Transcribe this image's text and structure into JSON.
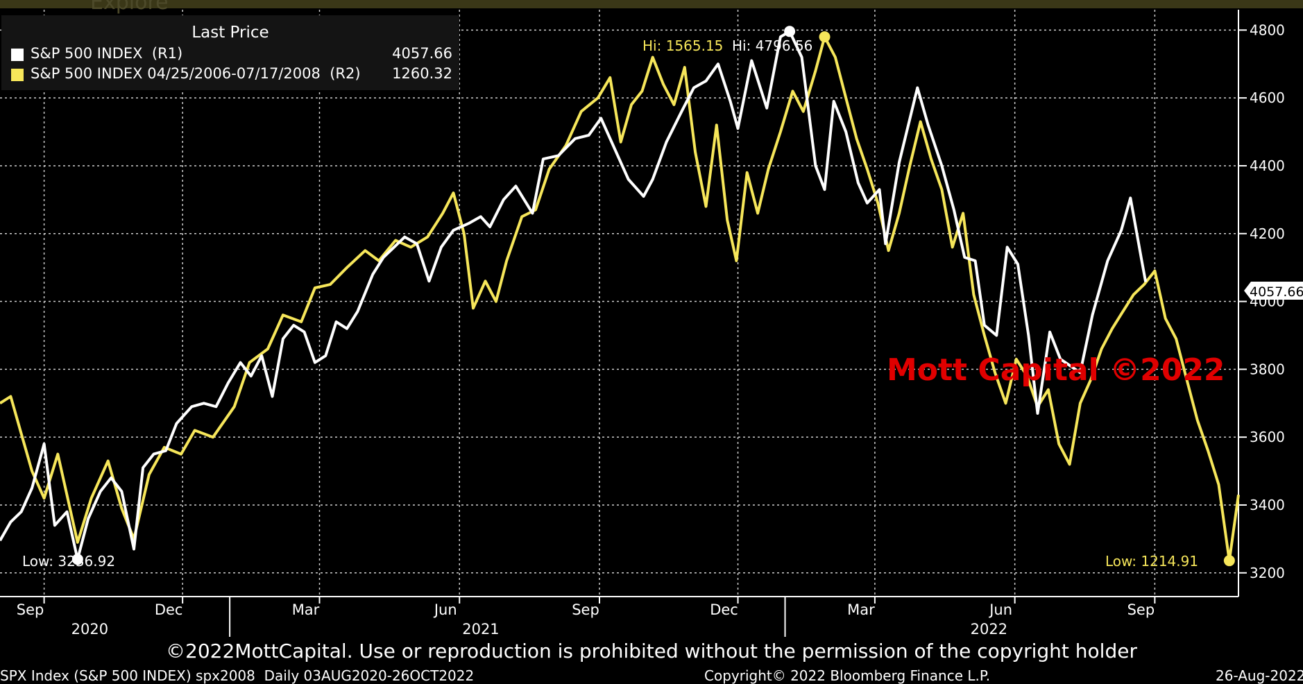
{
  "header": {
    "ghost_text": "Explore"
  },
  "legend": {
    "title": "Last Price",
    "rows": [
      {
        "label": "S&P 500 INDEX  (R1)",
        "value": "4057.66",
        "color": "#ffffff"
      },
      {
        "label": "S&P 500 INDEX 04/25/2006-07/17/2008  (R2)",
        "value": "1260.32",
        "color": "#f6e65a"
      }
    ]
  },
  "annotations": {
    "hi_yellow": "Hi: 1565.15",
    "hi_white": "Hi: 4796.56",
    "low_white": "Low: 3236.92",
    "low_yellow": "Low: 1214.91",
    "last_value_tag": "4057.66"
  },
  "watermark": "Mott Capital ©2022",
  "footer": {
    "copyright_notice": "©2022MottCapital. Use or reproduction is prohibited without the permission of the copyright holder",
    "ticker_info": "SPX Index (S&P 500 INDEX) spx2008  Daily 03AUG2020-26OCT2022",
    "bloomberg": "Copyright© 2022 Bloomberg Finance L.P.",
    "date": "26-Aug-2022"
  },
  "chart_data": {
    "type": "line",
    "x_start": "2020-08-03",
    "x_end": "2022-10-26",
    "yaxis_right": {
      "ticks": [
        3200,
        3400,
        3600,
        3800,
        4000,
        4200,
        4400,
        4600,
        4800
      ],
      "ylim": [
        3130,
        4860
      ]
    },
    "grid": true,
    "x_month_ticks": [
      {
        "label": "Sep",
        "date": "2020-09-01"
      },
      {
        "label": "Dec",
        "date": "2020-12-01"
      },
      {
        "label": "Mar",
        "date": "2021-03-01"
      },
      {
        "label": "Jun",
        "date": "2021-06-01"
      },
      {
        "label": "Sep",
        "date": "2021-09-01"
      },
      {
        "label": "Dec",
        "date": "2021-12-01"
      },
      {
        "label": "Mar",
        "date": "2022-03-01"
      },
      {
        "label": "Jun",
        "date": "2022-06-01"
      },
      {
        "label": "Sep",
        "date": "2022-09-01"
      }
    ],
    "x_year_labels": [
      {
        "label": "2020",
        "date": "2020-10-01"
      },
      {
        "label": "2021",
        "date": "2021-06-15"
      },
      {
        "label": "2022",
        "date": "2022-05-15"
      }
    ],
    "year_dividers": [
      "2021-01-01",
      "2022-01-01"
    ],
    "series": [
      {
        "name": "S&P 500 INDEX",
        "color": "#ffffff",
        "points": [
          [
            "2020-08-03",
            3295
          ],
          [
            "2020-08-10",
            3350
          ],
          [
            "2020-08-17",
            3380
          ],
          [
            "2020-08-24",
            3450
          ],
          [
            "2020-09-01",
            3580
          ],
          [
            "2020-09-08",
            3340
          ],
          [
            "2020-09-16",
            3380
          ],
          [
            "2020-09-23",
            3240
          ],
          [
            "2020-09-30",
            3360
          ],
          [
            "2020-10-08",
            3440
          ],
          [
            "2020-10-15",
            3480
          ],
          [
            "2020-10-22",
            3440
          ],
          [
            "2020-10-30",
            3270
          ],
          [
            "2020-11-05",
            3510
          ],
          [
            "2020-11-12",
            3550
          ],
          [
            "2020-11-20",
            3560
          ],
          [
            "2020-11-27",
            3640
          ],
          [
            "2020-12-07",
            3690
          ],
          [
            "2020-12-15",
            3700
          ],
          [
            "2020-12-23",
            3690
          ],
          [
            "2020-12-31",
            3760
          ],
          [
            "2021-01-08",
            3820
          ],
          [
            "2021-01-15",
            3780
          ],
          [
            "2021-01-22",
            3840
          ],
          [
            "2021-01-29",
            3720
          ],
          [
            "2021-02-05",
            3890
          ],
          [
            "2021-02-12",
            3930
          ],
          [
            "2021-02-19",
            3910
          ],
          [
            "2021-02-26",
            3820
          ],
          [
            "2021-03-05",
            3840
          ],
          [
            "2021-03-12",
            3940
          ],
          [
            "2021-03-19",
            3920
          ],
          [
            "2021-03-26",
            3970
          ],
          [
            "2021-04-05",
            4080
          ],
          [
            "2021-04-12",
            4130
          ],
          [
            "2021-04-19",
            4160
          ],
          [
            "2021-04-26",
            4190
          ],
          [
            "2021-05-04",
            4170
          ],
          [
            "2021-05-12",
            4060
          ],
          [
            "2021-05-20",
            4160
          ],
          [
            "2021-05-28",
            4210
          ],
          [
            "2021-06-07",
            4230
          ],
          [
            "2021-06-15",
            4250
          ],
          [
            "2021-06-21",
            4220
          ],
          [
            "2021-06-30",
            4300
          ],
          [
            "2021-07-08",
            4340
          ],
          [
            "2021-07-19",
            4260
          ],
          [
            "2021-07-26",
            4420
          ],
          [
            "2021-08-05",
            4430
          ],
          [
            "2021-08-16",
            4480
          ],
          [
            "2021-08-25",
            4490
          ],
          [
            "2021-09-02",
            4540
          ],
          [
            "2021-09-10",
            4460
          ],
          [
            "2021-09-20",
            4360
          ],
          [
            "2021-09-30",
            4310
          ],
          [
            "2021-10-06",
            4360
          ],
          [
            "2021-10-15",
            4470
          ],
          [
            "2021-10-25",
            4560
          ],
          [
            "2021-11-02",
            4630
          ],
          [
            "2021-11-10",
            4650
          ],
          [
            "2021-11-18",
            4700
          ],
          [
            "2021-11-26",
            4590
          ],
          [
            "2021-12-01",
            4510
          ],
          [
            "2021-12-10",
            4710
          ],
          [
            "2021-12-20",
            4570
          ],
          [
            "2021-12-29",
            4780
          ],
          [
            "2022-01-04",
            4796
          ],
          [
            "2022-01-12",
            4720
          ],
          [
            "2022-01-21",
            4400
          ],
          [
            "2022-01-27",
            4330
          ],
          [
            "2022-02-02",
            4590
          ],
          [
            "2022-02-10",
            4500
          ],
          [
            "2022-02-18",
            4350
          ],
          [
            "2022-02-24",
            4290
          ],
          [
            "2022-03-04",
            4330
          ],
          [
            "2022-03-08",
            4170
          ],
          [
            "2022-03-17",
            4410
          ],
          [
            "2022-03-29",
            4630
          ],
          [
            "2022-04-05",
            4520
          ],
          [
            "2022-04-14",
            4400
          ],
          [
            "2022-04-22",
            4270
          ],
          [
            "2022-04-29",
            4130
          ],
          [
            "2022-05-06",
            4120
          ],
          [
            "2022-05-12",
            3930
          ],
          [
            "2022-05-20",
            3900
          ],
          [
            "2022-05-27",
            4160
          ],
          [
            "2022-06-03",
            4110
          ],
          [
            "2022-06-10",
            3900
          ],
          [
            "2022-06-16",
            3670
          ],
          [
            "2022-06-24",
            3910
          ],
          [
            "2022-07-01",
            3830
          ],
          [
            "2022-07-14",
            3790
          ],
          [
            "2022-07-22",
            3960
          ],
          [
            "2022-08-01",
            4120
          ],
          [
            "2022-08-10",
            4210
          ],
          [
            "2022-08-16",
            4305
          ],
          [
            "2022-08-23",
            4130
          ],
          [
            "2022-08-26",
            4057.66
          ]
        ]
      },
      {
        "name": "S&P 500 INDEX 04/25/2006-07/17/2008",
        "color": "#f6e65a",
        "points": [
          [
            "2020-08-03",
            3700
          ],
          [
            "2020-08-10",
            3720
          ],
          [
            "2020-08-17",
            3610
          ],
          [
            "2020-08-24",
            3500
          ],
          [
            "2020-09-01",
            3420
          ],
          [
            "2020-09-10",
            3550
          ],
          [
            "2020-09-23",
            3290
          ],
          [
            "2020-10-02",
            3420
          ],
          [
            "2020-10-13",
            3530
          ],
          [
            "2020-10-22",
            3390
          ],
          [
            "2020-10-30",
            3300
          ],
          [
            "2020-11-09",
            3490
          ],
          [
            "2020-11-19",
            3570
          ],
          [
            "2020-11-30",
            3550
          ],
          [
            "2020-12-09",
            3620
          ],
          [
            "2020-12-21",
            3600
          ],
          [
            "2021-01-04",
            3690
          ],
          [
            "2021-01-14",
            3820
          ],
          [
            "2021-01-26",
            3860
          ],
          [
            "2021-02-05",
            3960
          ],
          [
            "2021-02-17",
            3940
          ],
          [
            "2021-02-26",
            4040
          ],
          [
            "2021-03-08",
            4050
          ],
          [
            "2021-03-19",
            4100
          ],
          [
            "2021-03-31",
            4150
          ],
          [
            "2021-04-09",
            4120
          ],
          [
            "2021-04-20",
            4180
          ],
          [
            "2021-04-30",
            4160
          ],
          [
            "2021-05-11",
            4190
          ],
          [
            "2021-05-21",
            4260
          ],
          [
            "2021-05-28",
            4320
          ],
          [
            "2021-06-04",
            4200
          ],
          [
            "2021-06-10",
            3980
          ],
          [
            "2021-06-18",
            4060
          ],
          [
            "2021-06-25",
            4000
          ],
          [
            "2021-07-02",
            4120
          ],
          [
            "2021-07-12",
            4250
          ],
          [
            "2021-07-21",
            4270
          ],
          [
            "2021-07-30",
            4390
          ],
          [
            "2021-08-10",
            4460
          ],
          [
            "2021-08-20",
            4560
          ],
          [
            "2021-08-31",
            4600
          ],
          [
            "2021-09-08",
            4660
          ],
          [
            "2021-09-15",
            4470
          ],
          [
            "2021-09-22",
            4580
          ],
          [
            "2021-09-29",
            4620
          ],
          [
            "2021-10-06",
            4720
          ],
          [
            "2021-10-13",
            4640
          ],
          [
            "2021-10-20",
            4580
          ],
          [
            "2021-10-27",
            4690
          ],
          [
            "2021-11-03",
            4440
          ],
          [
            "2021-11-10",
            4280
          ],
          [
            "2021-11-17",
            4520
          ],
          [
            "2021-11-24",
            4240
          ],
          [
            "2021-11-30",
            4120
          ],
          [
            "2021-12-07",
            4380
          ],
          [
            "2021-12-14",
            4260
          ],
          [
            "2021-12-21",
            4390
          ],
          [
            "2021-12-29",
            4500
          ],
          [
            "2022-01-06",
            4620
          ],
          [
            "2022-01-13",
            4560
          ],
          [
            "2022-01-21",
            4680
          ],
          [
            "2022-01-27",
            4780
          ],
          [
            "2022-02-03",
            4720
          ],
          [
            "2022-02-10",
            4600
          ],
          [
            "2022-02-17",
            4480
          ],
          [
            "2022-02-24",
            4390
          ],
          [
            "2022-03-03",
            4290
          ],
          [
            "2022-03-10",
            4150
          ],
          [
            "2022-03-17",
            4260
          ],
          [
            "2022-03-24",
            4400
          ],
          [
            "2022-03-31",
            4530
          ],
          [
            "2022-04-07",
            4420
          ],
          [
            "2022-04-14",
            4330
          ],
          [
            "2022-04-21",
            4160
          ],
          [
            "2022-04-28",
            4260
          ],
          [
            "2022-05-05",
            4020
          ],
          [
            "2022-05-12",
            3900
          ],
          [
            "2022-05-19",
            3790
          ],
          [
            "2022-05-26",
            3700
          ],
          [
            "2022-06-02",
            3830
          ],
          [
            "2022-06-09",
            3780
          ],
          [
            "2022-06-16",
            3690
          ],
          [
            "2022-06-23",
            3740
          ],
          [
            "2022-06-30",
            3580
          ],
          [
            "2022-07-07",
            3520
          ],
          [
            "2022-07-14",
            3700
          ],
          [
            "2022-07-21",
            3770
          ],
          [
            "2022-07-28",
            3860
          ],
          [
            "2022-08-04",
            3920
          ],
          [
            "2022-08-11",
            3970
          ],
          [
            "2022-08-18",
            4020
          ],
          [
            "2022-08-25",
            4050
          ],
          [
            "2022-09-01",
            4090
          ],
          [
            "2022-09-08",
            3950
          ],
          [
            "2022-09-15",
            3890
          ],
          [
            "2022-09-22",
            3770
          ],
          [
            "2022-09-29",
            3650
          ],
          [
            "2022-10-06",
            3560
          ],
          [
            "2022-10-13",
            3460
          ],
          [
            "2022-10-20",
            3236
          ],
          [
            "2022-10-26",
            3430
          ]
        ]
      }
    ]
  }
}
